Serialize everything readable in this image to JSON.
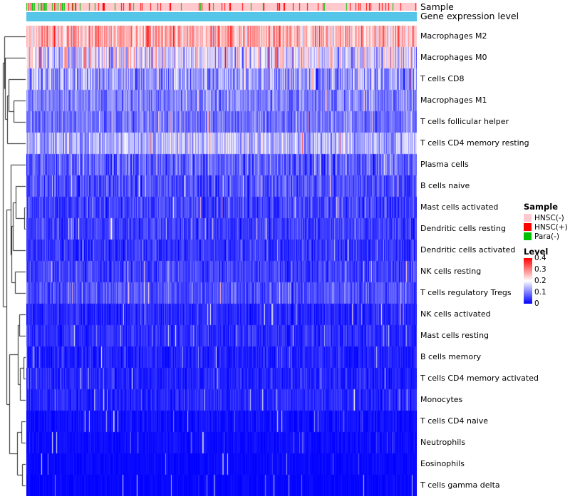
{
  "tracks": {
    "sample_label": "Sample",
    "expression_label": "Gene expression level",
    "expression_color": "#55C6E8",
    "sample_base_color": "#FFC9CE",
    "sample_mark_colors": {
      "hnsc_pos": "#FF0000",
      "para_neg": "#00C000"
    }
  },
  "legend": {
    "sample": {
      "title": "Sample",
      "items": [
        {
          "label": "HNSC(-)",
          "color": "#FFC9CE"
        },
        {
          "label": "HNSC(+)",
          "color": "#FF0000"
        },
        {
          "label": "Para(-)",
          "color": "#00C000"
        }
      ]
    },
    "level": {
      "title": "Level",
      "ticks": [
        "0.4",
        "0.3",
        "0.2",
        "0.1",
        "0"
      ],
      "max": 0.4,
      "min": 0,
      "colors_top_to_bottom": [
        "#FF0000",
        "#FFFFFF",
        "#0000FF"
      ]
    }
  },
  "chart_data": {
    "type": "heatmap",
    "title": "",
    "colormap": "blue-white-red",
    "value_range": [
      0,
      0.4
    ],
    "n_samples_approx": 548,
    "row_dendrogram": true,
    "column_annotation_tracks": [
      "Sample",
      "Gene expression level"
    ],
    "rows": [
      {
        "label": "Macrophages M2",
        "mean_level": 0.26,
        "spread": 0.12
      },
      {
        "label": "Macrophages M0",
        "mean_level": 0.18,
        "spread": 0.16
      },
      {
        "label": "T cells CD8",
        "mean_level": 0.12,
        "spread": 0.12
      },
      {
        "label": "Macrophages M1",
        "mean_level": 0.1,
        "spread": 0.08
      },
      {
        "label": "T cells follicular helper",
        "mean_level": 0.09,
        "spread": 0.07
      },
      {
        "label": "T cells CD4 memory resting",
        "mean_level": 0.14,
        "spread": 0.1
      },
      {
        "label": "Plasma cells",
        "mean_level": 0.07,
        "spread": 0.09
      },
      {
        "label": "B cells naive",
        "mean_level": 0.06,
        "spread": 0.07
      },
      {
        "label": "Mast cells activated",
        "mean_level": 0.05,
        "spread": 0.07
      },
      {
        "label": "Dendritic cells resting",
        "mean_level": 0.05,
        "spread": 0.06
      },
      {
        "label": "Dendritic cells activated",
        "mean_level": 0.04,
        "spread": 0.06
      },
      {
        "label": "NK cells resting",
        "mean_level": 0.05,
        "spread": 0.06
      },
      {
        "label": "T cells regulatory  Tregs",
        "mean_level": 0.06,
        "spread": 0.06
      },
      {
        "label": "NK cells activated",
        "mean_level": 0.03,
        "spread": 0.045
      },
      {
        "label": "Mast cells resting",
        "mean_level": 0.035,
        "spread": 0.05
      },
      {
        "label": "B cells memory",
        "mean_level": 0.025,
        "spread": 0.04
      },
      {
        "label": "T cells CD4 memory activated",
        "mean_level": 0.025,
        "spread": 0.04
      },
      {
        "label": "Monocytes",
        "mean_level": 0.03,
        "spread": 0.04
      },
      {
        "label": "T cells CD4 naive",
        "mean_level": 0.012,
        "spread": 0.025
      },
      {
        "label": "Neutrophils",
        "mean_level": 0.01,
        "spread": 0.02
      },
      {
        "label": "Eosinophils",
        "mean_level": 0.006,
        "spread": 0.015
      },
      {
        "label": "T cells gamma delta",
        "mean_level": 0.005,
        "spread": 0.015
      }
    ]
  }
}
